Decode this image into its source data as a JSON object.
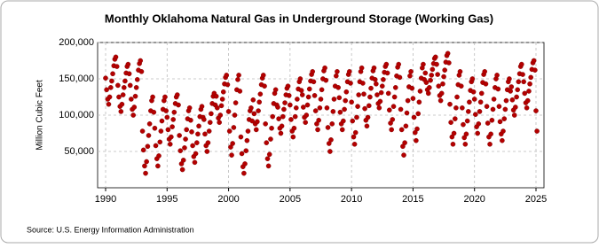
{
  "chart_data": {
    "type": "scatter",
    "title": "Monthly Oklahoma Natural Gas in Underground Storage (Working Gas)",
    "ylabel": "Million Cubic Feet",
    "source": "Source: U.S. Energy Information Administration",
    "color": "#b40000",
    "grid": true,
    "xlim": [
      1989.35,
      2025.65
    ],
    "xticks": [
      1990,
      1995,
      2000,
      2005,
      2010,
      2015,
      2020,
      2025
    ],
    "ylim": [
      0,
      200000
    ],
    "yticks": [
      {
        "value": 50000,
        "label": "50,000"
      },
      {
        "value": 100000,
        "label": "100,000"
      },
      {
        "value": 150000,
        "label": "150,000"
      },
      {
        "value": 200000,
        "label": "200,000"
      }
    ],
    "x": [
      1990,
      1990.08,
      1990.17,
      1990.25,
      1990.33,
      1990.42,
      1990.5,
      1990.58,
      1990.67,
      1990.75,
      1990.83,
      1990.92,
      1991,
      1991.08,
      1991.17,
      1991.25,
      1991.33,
      1991.42,
      1991.5,
      1991.58,
      1991.67,
      1991.75,
      1991.83,
      1991.92,
      1992,
      1992.08,
      1992.17,
      1992.25,
      1992.33,
      1992.42,
      1992.5,
      1992.58,
      1992.67,
      1992.75,
      1992.83,
      1992.92,
      1993,
      1993.08,
      1993.17,
      1993.25,
      1993.33,
      1993.42,
      1993.5,
      1993.58,
      1993.67,
      1993.75,
      1993.83,
      1993.92,
      1994,
      1994.08,
      1994.17,
      1994.25,
      1994.33,
      1994.42,
      1994.5,
      1994.58,
      1994.67,
      1994.75,
      1994.83,
      1994.92,
      1995,
      1995.08,
      1995.17,
      1995.25,
      1995.33,
      1995.42,
      1995.5,
      1995.58,
      1995.67,
      1995.75,
      1995.83,
      1995.92,
      1996,
      1996.08,
      1996.17,
      1996.25,
      1996.33,
      1996.42,
      1996.5,
      1996.58,
      1996.67,
      1996.75,
      1996.83,
      1996.92,
      1997,
      1997.08,
      1997.17,
      1997.25,
      1997.33,
      1997.42,
      1997.5,
      1997.58,
      1997.67,
      1997.75,
      1997.83,
      1997.92,
      1998,
      1998.08,
      1998.17,
      1998.25,
      1998.33,
      1998.42,
      1998.5,
      1998.58,
      1998.67,
      1998.75,
      1998.83,
      1998.92,
      1999,
      1999.08,
      1999.17,
      1999.25,
      1999.33,
      1999.42,
      1999.5,
      1999.58,
      1999.67,
      1999.75,
      1999.83,
      1999.92,
      2000,
      2000.08,
      2000.17,
      2000.25,
      2000.33,
      2000.42,
      2000.5,
      2000.58,
      2000.67,
      2000.75,
      2000.83,
      2000.92,
      2001,
      2001.08,
      2001.17,
      2001.25,
      2001.33,
      2001.42,
      2001.5,
      2001.58,
      2001.67,
      2001.75,
      2001.83,
      2001.92,
      2002,
      2002.08,
      2002.17,
      2002.25,
      2002.33,
      2002.42,
      2002.5,
      2002.58,
      2002.67,
      2002.75,
      2002.83,
      2002.92,
      2003,
      2003.08,
      2003.17,
      2003.25,
      2003.33,
      2003.42,
      2003.5,
      2003.58,
      2003.67,
      2003.75,
      2003.83,
      2003.92,
      2004,
      2004.08,
      2004.17,
      2004.25,
      2004.33,
      2004.42,
      2004.5,
      2004.58,
      2004.67,
      2004.75,
      2004.83,
      2004.92,
      2005,
      2005.08,
      2005.17,
      2005.25,
      2005.33,
      2005.42,
      2005.5,
      2005.58,
      2005.67,
      2005.75,
      2005.83,
      2005.92,
      2006,
      2006.08,
      2006.17,
      2006.25,
      2006.33,
      2006.42,
      2006.5,
      2006.58,
      2006.67,
      2006.75,
      2006.83,
      2006.92,
      2007,
      2007.08,
      2007.17,
      2007.25,
      2007.33,
      2007.42,
      2007.5,
      2007.58,
      2007.67,
      2007.75,
      2007.83,
      2007.92,
      2008,
      2008.08,
      2008.17,
      2008.25,
      2008.33,
      2008.42,
      2008.5,
      2008.58,
      2008.67,
      2008.75,
      2008.83,
      2008.92,
      2009,
      2009.08,
      2009.17,
      2009.25,
      2009.33,
      2009.42,
      2009.5,
      2009.58,
      2009.67,
      2009.75,
      2009.83,
      2009.92,
      2010,
      2010.08,
      2010.17,
      2010.25,
      2010.33,
      2010.42,
      2010.5,
      2010.58,
      2010.67,
      2010.75,
      2010.83,
      2010.92,
      2011,
      2011.08,
      2011.17,
      2011.25,
      2011.33,
      2011.42,
      2011.5,
      2011.58,
      2011.67,
      2011.75,
      2011.83,
      2011.92,
      2012,
      2012.08,
      2012.17,
      2012.25,
      2012.33,
      2012.42,
      2012.5,
      2012.58,
      2012.67,
      2012.75,
      2012.83,
      2012.92,
      2013,
      2013.08,
      2013.17,
      2013.25,
      2013.33,
      2013.42,
      2013.5,
      2013.58,
      2013.67,
      2013.75,
      2013.83,
      2013.92,
      2014,
      2014.08,
      2014.17,
      2014.25,
      2014.33,
      2014.42,
      2014.5,
      2014.58,
      2014.67,
      2014.75,
      2014.83,
      2014.92,
      2015,
      2015.08,
      2015.17,
      2015.25,
      2015.33,
      2015.42,
      2015.5,
      2015.58,
      2015.67,
      2015.75,
      2015.83,
      2015.92,
      2016,
      2016.08,
      2016.17,
      2016.25,
      2016.33,
      2016.42,
      2016.5,
      2016.58,
      2016.67,
      2016.75,
      2016.83,
      2016.92,
      2017,
      2017.08,
      2017.17,
      2017.25,
      2017.33,
      2017.42,
      2017.5,
      2017.58,
      2017.67,
      2017.75,
      2017.83,
      2017.92,
      2018,
      2018.08,
      2018.17,
      2018.25,
      2018.33,
      2018.42,
      2018.5,
      2018.58,
      2018.67,
      2018.75,
      2018.83,
      2018.92,
      2019,
      2019.08,
      2019.17,
      2019.25,
      2019.33,
      2019.42,
      2019.5,
      2019.58,
      2019.67,
      2019.75,
      2019.83,
      2019.92,
      2020,
      2020.08,
      2020.17,
      2020.25,
      2020.33,
      2020.42,
      2020.5,
      2020.58,
      2020.67,
      2020.75,
      2020.83,
      2020.92,
      2021,
      2021.08,
      2021.17,
      2021.25,
      2021.33,
      2021.42,
      2021.5,
      2021.58,
      2021.67,
      2021.75,
      2021.83,
      2021.92,
      2022,
      2022.08,
      2022.17,
      2022.25,
      2022.33,
      2022.42,
      2022.5,
      2022.58,
      2022.67,
      2022.75,
      2022.83,
      2022.92,
      2023,
      2023.08,
      2023.17,
      2023.25,
      2023.33,
      2023.42,
      2023.5,
      2023.58,
      2023.67,
      2023.75,
      2023.83,
      2023.92,
      2024,
      2024.08,
      2024.17,
      2024.25,
      2024.33,
      2024.42,
      2024.5,
      2024.58,
      2024.67,
      2024.75,
      2024.83,
      2024.92,
      2025,
      2025.08
    ],
    "values": [
      151000,
      135000,
      122000,
      115000,
      125000,
      138000,
      147000,
      157000,
      168000,
      177000,
      180000,
      167000,
      141000,
      125000,
      112000,
      105000,
      115000,
      128000,
      138000,
      147000,
      158000,
      167000,
      170000,
      157000,
      141000,
      122000,
      108000,
      100000,
      111000,
      126000,
      138000,
      149000,
      162000,
      171000,
      175000,
      160000,
      78000,
      52000,
      30000,
      20000,
      36000,
      57000,
      72000,
      88000,
      106000,
      120000,
      125000,
      104000,
      82000,
      58000,
      40000,
      30000,
      44000,
      63000,
      78000,
      92000,
      108000,
      120000,
      125000,
      106000,
      97000,
      80000,
      67000,
      60000,
      70000,
      84000,
      94000,
      104000,
      116000,
      125000,
      128000,
      114000,
      72000,
      51000,
      33000,
      25000,
      38000,
      55000,
      67000,
      80000,
      95000,
      106000,
      110000,
      93000,
      77000,
      58000,
      43000,
      35000,
      47000,
      62000,
      74000,
      85000,
      98000,
      108000,
      112000,
      97000,
      94000,
      74000,
      58000,
      50000,
      62000,
      78000,
      90000,
      102000,
      116000,
      126000,
      130000,
      114000,
      126000,
      110000,
      96000,
      90000,
      100000,
      113000,
      122000,
      132000,
      143000,
      152000,
      155000,
      142000,
      105000,
      78000,
      56000,
      45000,
      61000,
      83000,
      100000,
      117000,
      135000,
      149000,
      155000,
      133000,
      70000,
      47000,
      29000,
      20000,
      33000,
      51000,
      65000,
      78000,
      94000,
      106000,
      110000,
      92000,
      121000,
      102000,
      88000,
      80000,
      91000,
      106000,
      118000,
      129000,
      142000,
      151000,
      155000,
      140000,
      88000,
      62000,
      40000,
      30000,
      46000,
      67000,
      82000,
      98000,
      116000,
      130000,
      135000,
      114000,
      111000,
      95000,
      82000,
      75000,
      85000,
      98000,
      108000,
      117000,
      128000,
      137000,
      140000,
      127000,
      114000,
      94000,
      78000,
      70000,
      82000,
      98000,
      110000,
      122000,
      136000,
      146000,
      150000,
      134000,
      128000,
      111000,
      97000,
      90000,
      100000,
      114000,
      125000,
      136000,
      147000,
      156000,
      160000,
      146000,
      127000,
      106000,
      88000,
      80000,
      93000,
      110000,
      122000,
      135000,
      150000,
      161000,
      165000,
      148000,
      110000,
      83000,
      61000,
      50000,
      66000,
      88000,
      105000,
      122000,
      140000,
      154000,
      160000,
      138000,
      124000,
      104000,
      88000,
      80000,
      92000,
      108000,
      120000,
      132000,
      146000,
      156000,
      160000,
      144000,
      118000,
      92000,
      70000,
      60000,
      76000,
      97000,
      112000,
      128000,
      146000,
      160000,
      165000,
      144000,
      129000,
      109000,
      93000,
      85000,
      97000,
      113000,
      125000,
      137000,
      151000,
      161000,
      165000,
      149000,
      143000,
      128000,
      116000,
      110000,
      119000,
      131000,
      140000,
      149000,
      159000,
      167000,
      170000,
      158000,
      130000,
      107000,
      89000,
      80000,
      94000,
      112000,
      125000,
      138000,
      154000,
      166000,
      170000,
      152000,
      108000,
      80000,
      57000,
      45000,
      62000,
      85000,
      103000,
      120000,
      139000,
      154000,
      160000,
      137000,
      123000,
      97000,
      76000,
      65000,
      81000,
      102000,
      118000,
      133000,
      151000,
      165000,
      170000,
      149000,
      158000,
      145000,
      135000,
      130000,
      138000,
      148000,
      155000,
      163000,
      171000,
      178000,
      180000,
      170000,
      156000,
      140000,
      127000,
      120000,
      130000,
      143000,
      153000,
      162000,
      173000,
      182000,
      185000,
      172000,
      115000,
      90000,
      70000,
      60000,
      75000,
      95000,
      110000,
      125000,
      142000,
      155000,
      160000,
      140000,
      110000,
      87000,
      69000,
      60000,
      74000,
      92000,
      105000,
      118000,
      134000,
      146000,
      150000,
      132000,
      122000,
      101000,
      84000,
      75000,
      88000,
      105000,
      118000,
      130000,
      145000,
      156000,
      160000,
      143000,
      112000,
      89000,
      70000,
      60000,
      74000,
      93000,
      108000,
      122000,
      138000,
      150000,
      155000,
      136000,
      112000,
      91000,
      74000,
      65000,
      78000,
      95000,
      108000,
      120000,
      135000,
      146000,
      150000,
      133000,
      139000,
      121000,
      107000,
      100000,
      111000,
      125000,
      135000,
      146000,
      157000,
      167000,
      170000,
      156000,
      146000,
      130000,
      117000,
      110000,
      120000,
      133000,
      143000,
      152000,
      163000,
      172000,
      175000,
      162000,
      106000,
      78000
    ]
  }
}
